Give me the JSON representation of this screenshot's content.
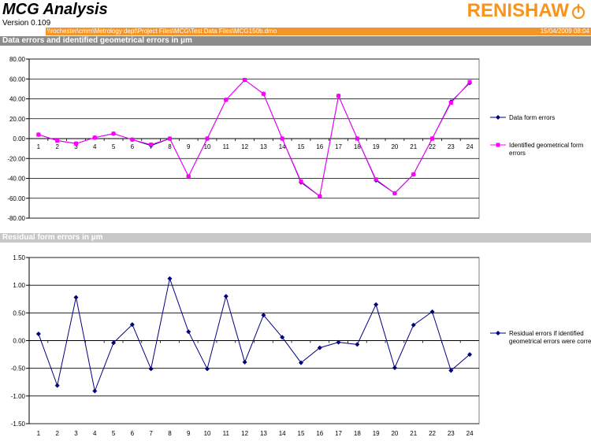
{
  "header": {
    "title": "MCG Analysis",
    "version": "Version 0.109",
    "logo": "RENISHAW",
    "file_path": "\\\\rochester\\cmm\\Metrology dept\\Project Files\\MCG\\Test Data Files\\MCG150b.dmo",
    "timestamp": "15/04/2009 08:04"
  },
  "sections": {
    "top": "Data errors and identified geometrical errors in  µm",
    "bottom": "Residual form errors in  µm"
  },
  "colors": {
    "accent": "#f4952a",
    "data_series": "#000080",
    "geometrical_series": "#ff00ff",
    "residual_series": "#000080"
  },
  "chart_data": [
    {
      "type": "line",
      "categories": [
        "1",
        "2",
        "3",
        "4",
        "5",
        "6",
        "7",
        "8",
        "9",
        "10",
        "11",
        "12",
        "13",
        "14",
        "15",
        "16",
        "17",
        "18",
        "19",
        "20",
        "21",
        "22",
        "23",
        "24"
      ],
      "ylim": [
        -80,
        80
      ],
      "yticks": [
        "80.00",
        "60.00",
        "40.00",
        "20.00",
        "0.00",
        "-20.00",
        "-40.00",
        "-60.00",
        "-80.00"
      ],
      "ytick_values": [
        80,
        60,
        40,
        20,
        0,
        -20,
        -40,
        -60,
        -80
      ],
      "grid": true,
      "legend_position": "right",
      "series": [
        {
          "name": "Data form errors",
          "color": "#000080",
          "marker": "diamond",
          "values": [
            4,
            -2,
            -5,
            1,
            5,
            -1,
            -7,
            0,
            -38,
            0,
            39,
            59,
            45,
            0,
            -44,
            -58,
            43,
            0,
            -42,
            -55,
            -36,
            0,
            37,
            56
          ]
        },
        {
          "name": "Identified geometrical form errors",
          "color": "#ff00ff",
          "marker": "square",
          "values": [
            4,
            -2,
            -5,
            1,
            5,
            -1,
            -6,
            0,
            -38,
            0,
            39,
            59,
            45,
            0,
            -43,
            -58,
            43,
            0,
            -41,
            -55,
            -36,
            0,
            36,
            57
          ]
        }
      ]
    },
    {
      "type": "line",
      "categories": [
        "1",
        "2",
        "3",
        "4",
        "5",
        "6",
        "7",
        "8",
        "9",
        "10",
        "11",
        "12",
        "13",
        "14",
        "15",
        "16",
        "17",
        "18",
        "19",
        "20",
        "21",
        "22",
        "23",
        "24"
      ],
      "ylim": [
        -1.5,
        1.5
      ],
      "yticks": [
        "1.50",
        "1.00",
        "0.50",
        "0.00",
        "-0.50",
        "-1.00",
        "-1.50"
      ],
      "ytick_values": [
        1.5,
        1.0,
        0.5,
        0.0,
        -0.5,
        -1.0,
        -1.5
      ],
      "grid": true,
      "legend_position": "right",
      "series": [
        {
          "name": "Residual errors if identified geometrical errors were corrected",
          "color": "#000080",
          "marker": "diamond",
          "values": [
            0.12,
            -0.81,
            0.78,
            -0.91,
            -0.04,
            0.29,
            -0.51,
            1.12,
            0.16,
            -0.51,
            0.8,
            -0.39,
            0.46,
            0.06,
            -0.4,
            -0.13,
            -0.03,
            -0.07,
            0.65,
            -0.49,
            0.28,
            0.52,
            -0.54,
            -0.25
          ]
        }
      ]
    }
  ]
}
